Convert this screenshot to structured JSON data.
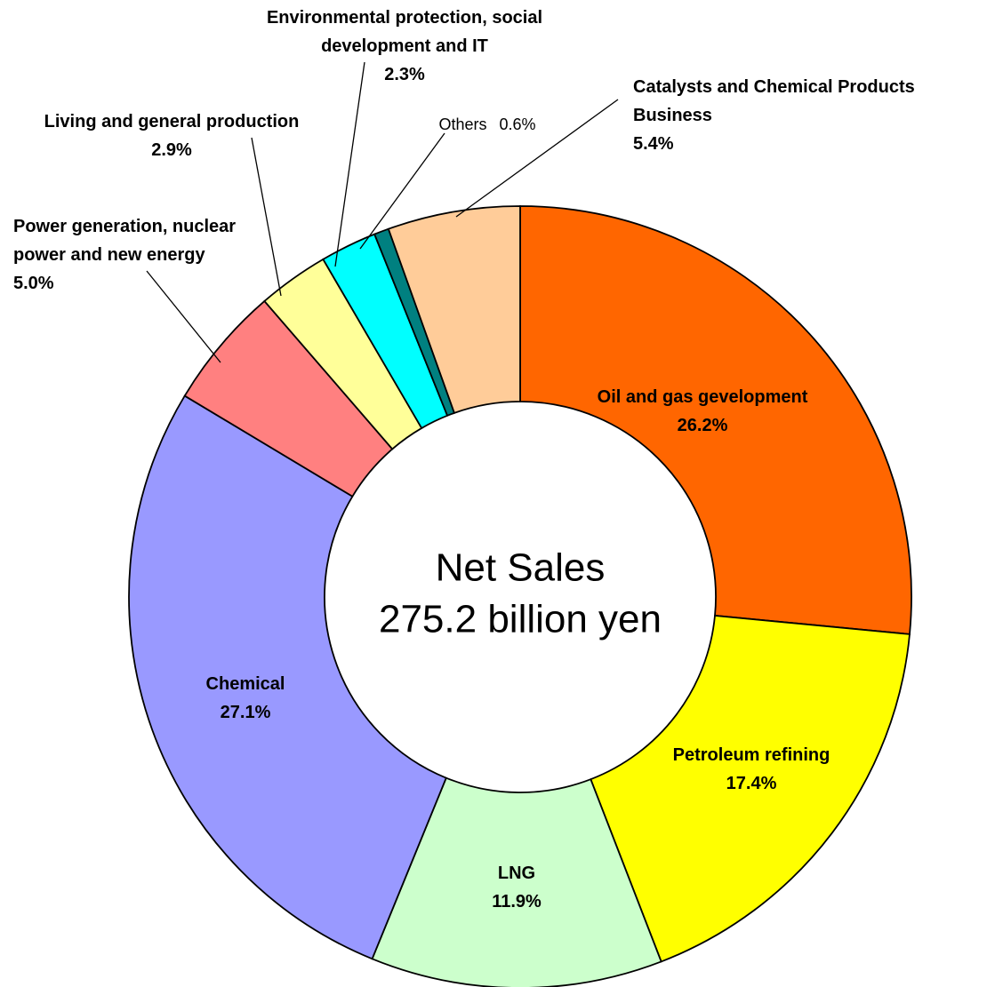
{
  "chart_data": {
    "type": "donut",
    "center_label": [
      "Net Sales",
      "275.2 billion yen"
    ],
    "categories": [
      "Oil and gas gevelopment",
      "Petroleum refining",
      "LNG",
      "Chemical",
      "Power generation, nuclear power and new energy",
      "Living and general production",
      "Environmental protection, social development and IT",
      "Others",
      "Catalysts and Chemical Products Business"
    ],
    "values": [
      26.2,
      17.4,
      11.9,
      27.1,
      5.0,
      2.9,
      2.3,
      0.6,
      5.4
    ],
    "value_labels": [
      "26.2%",
      "17.4%",
      "11.9%",
      "27.1%",
      "5.0%",
      "2.9%",
      "2.3%",
      "0.6%",
      "5.4%"
    ],
    "colors": [
      "#ff6600",
      "#ffff00",
      "#ccffcc",
      "#9999ff",
      "#ff8080",
      "#ffff99",
      "#00ffff",
      "#008080",
      "#ffcc99"
    ]
  }
}
